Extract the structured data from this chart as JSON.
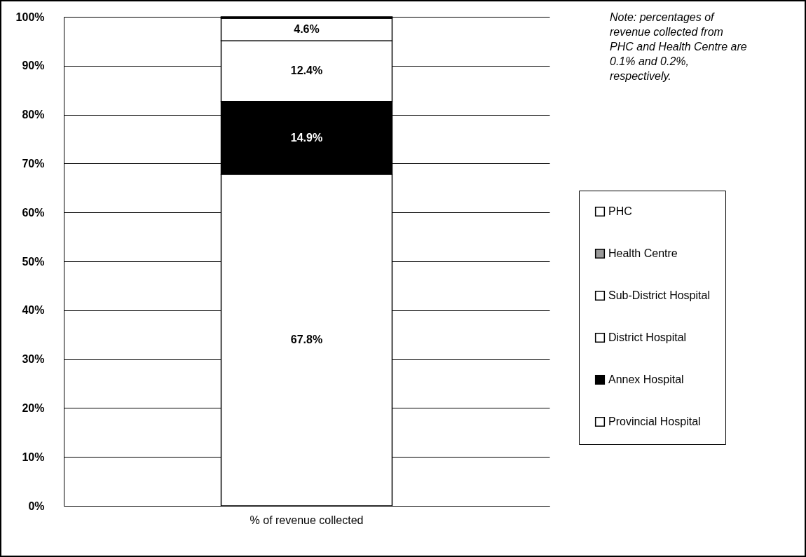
{
  "chart_data": {
    "type": "bar",
    "stacked": true,
    "categories": [
      "% of revenue collected"
    ],
    "series": [
      {
        "name": "Provincial Hospital",
        "color": "#ffffff",
        "values": [
          67.8
        ],
        "value_labels": [
          "67.8%"
        ]
      },
      {
        "name": "Annex Hospital",
        "color": "#000000",
        "values": [
          14.9
        ],
        "value_labels": [
          "14.9%"
        ]
      },
      {
        "name": "District Hospital",
        "color": "#ffffff",
        "values": [
          12.4
        ],
        "value_labels": [
          "12.4%"
        ]
      },
      {
        "name": "Sub-District Hospital",
        "color": "#ffffff",
        "values": [
          4.6
        ],
        "value_labels": [
          "4.6%"
        ]
      },
      {
        "name": "Health Centre",
        "color": "#999999",
        "values": [
          0.2
        ],
        "value_labels": [
          null
        ]
      },
      {
        "name": "PHC",
        "color": "#ffffff",
        "values": [
          0.1
        ],
        "value_labels": [
          null
        ]
      }
    ],
    "ylim": [
      0,
      100
    ],
    "yticks": [
      {
        "value": 0,
        "label": "0%"
      },
      {
        "value": 10,
        "label": "10%"
      },
      {
        "value": 20,
        "label": "20%"
      },
      {
        "value": 30,
        "label": "30%"
      },
      {
        "value": 40,
        "label": "40%"
      },
      {
        "value": 50,
        "label": "50%"
      },
      {
        "value": 60,
        "label": "60%"
      },
      {
        "value": 70,
        "label": "70%"
      },
      {
        "value": 80,
        "label": "80%"
      },
      {
        "value": 90,
        "label": "90%"
      },
      {
        "value": 100,
        "label": "100%"
      }
    ],
    "grid": "y",
    "legend": "right",
    "annotations": [
      "Note: percentages of revenue collected from PHC and Health Centre are 0.1% and 0.2%, respectively."
    ]
  }
}
